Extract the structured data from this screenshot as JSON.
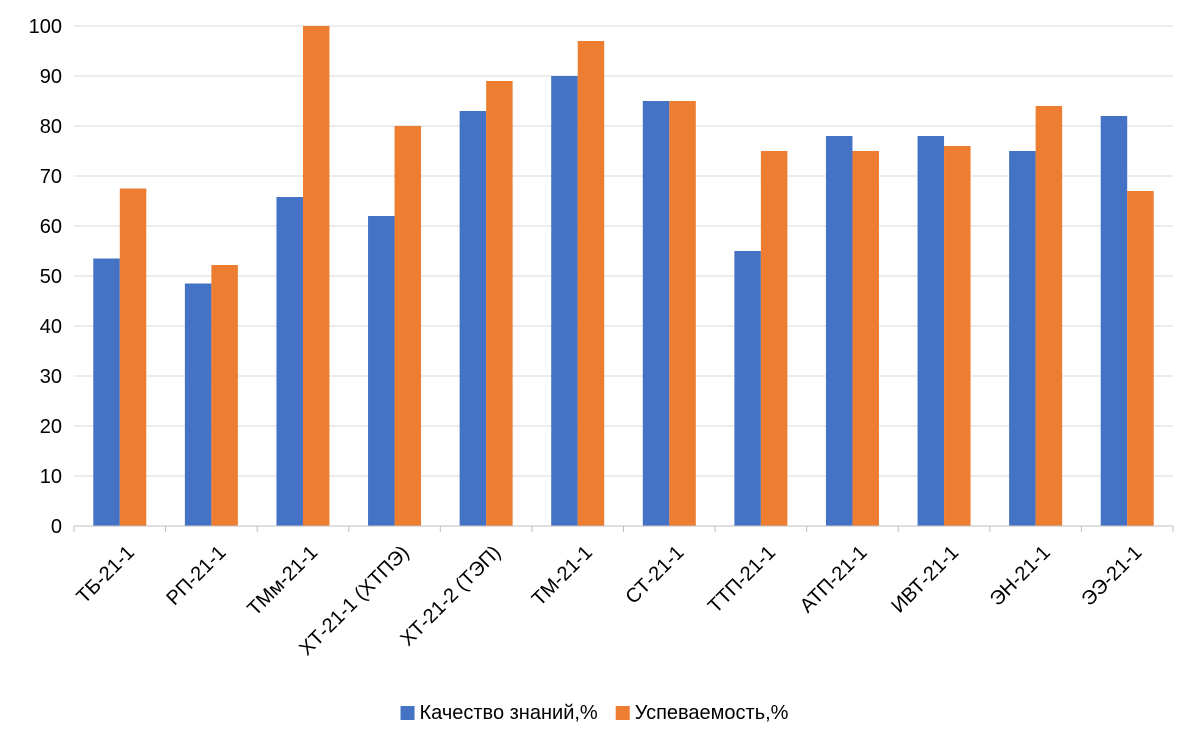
{
  "chart_data": {
    "type": "bar",
    "title": "",
    "xlabel": "",
    "ylabel": "",
    "ylim": [
      0,
      100
    ],
    "y_ticks": [
      0,
      10,
      20,
      30,
      40,
      50,
      60,
      70,
      80,
      90,
      100
    ],
    "grid": true,
    "legend_position": "bottom",
    "categories": [
      "ТБ-21-1",
      "РП-21-1",
      "ТМм-21-1",
      "ХТ-21-1 (ХТПЭ)",
      "ХТ-21-2 (ТЭП)",
      "ТМ-21-1",
      "СТ-21-1",
      "ТТП-21-1",
      "АТП-21-1",
      "ИВТ-21-1",
      "ЭН-21-1",
      "ЭЭ-21-1"
    ],
    "series": [
      {
        "name": "Качество знаний,%",
        "color": "#4472C4",
        "values": [
          53.5,
          48.5,
          65.8,
          62,
          83,
          90,
          85,
          55,
          78,
          78,
          75,
          82
        ]
      },
      {
        "name": "Успеваемость,%",
        "color": "#ED7D31",
        "values": [
          67.5,
          52.2,
          100,
          80,
          89,
          97,
          85,
          75,
          75,
          76,
          84,
          67
        ]
      }
    ]
  }
}
